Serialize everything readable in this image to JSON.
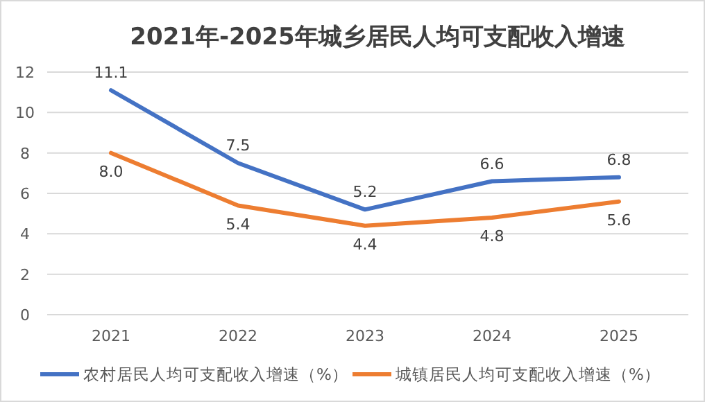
{
  "chart_data": {
    "type": "line",
    "title": "2021年-2025年城乡居民人均可支配收入增速",
    "categories": [
      "2021",
      "2022",
      "2023",
      "2024",
      "2025"
    ],
    "series": [
      {
        "name": "农村居民人均可支配收入增速（%）",
        "color": "#4472c4",
        "values": [
          11.1,
          7.5,
          5.2,
          6.6,
          6.8
        ],
        "value_labels": [
          "11.1",
          "7.5",
          "5.2",
          "6.6",
          "6.8"
        ]
      },
      {
        "name": "城镇居民人均可支配收入增速（%）",
        "color": "#ed7d31",
        "values": [
          8.0,
          5.4,
          4.4,
          4.8,
          5.6
        ],
        "value_labels": [
          "8.0",
          "5.4",
          "4.4",
          "4.8",
          "5.6"
        ]
      }
    ],
    "ylim": [
      0,
      12
    ],
    "yticks": [
      0,
      2,
      4,
      6,
      8,
      10,
      12
    ],
    "grid": "y",
    "legend": "bottom",
    "marker": "none",
    "line_style": "solid"
  }
}
